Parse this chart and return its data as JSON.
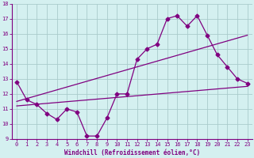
{
  "xlabel": "Windchill (Refroidissement éolien,°C)",
  "bg_color": "#d4f0f0",
  "grid_color": "#aacccc",
  "line_color": "#800080",
  "axis_color": "#800080",
  "xlim": [
    -0.5,
    23.5
  ],
  "ylim": [
    9,
    18
  ],
  "xticks": [
    0,
    1,
    2,
    3,
    4,
    5,
    6,
    7,
    8,
    9,
    10,
    11,
    12,
    13,
    14,
    15,
    16,
    17,
    18,
    19,
    20,
    21,
    22,
    23
  ],
  "yticks": [
    9,
    10,
    11,
    12,
    13,
    14,
    15,
    16,
    17,
    18
  ],
  "line1_x": [
    0,
    1,
    2,
    3,
    4,
    5,
    6,
    7,
    8,
    9,
    10,
    11,
    12,
    13,
    14,
    15,
    16,
    17,
    18,
    19,
    20,
    21,
    22,
    23
  ],
  "line1_y": [
    12.8,
    11.6,
    11.3,
    10.7,
    10.3,
    11.0,
    10.8,
    9.2,
    9.2,
    10.4,
    12.0,
    12.0,
    14.3,
    15.0,
    15.3,
    17.0,
    17.2,
    16.5,
    17.2,
    15.9,
    14.6,
    13.8,
    13.0,
    12.7
  ],
  "line2_x": [
    0,
    23
  ],
  "line2_y": [
    11.2,
    12.5
  ],
  "line3_x": [
    0,
    23
  ],
  "line3_y": [
    11.5,
    15.9
  ],
  "markersize": 2.5,
  "linewidth": 0.9,
  "tick_fontsize": 5,
  "xlabel_fontsize": 5.5
}
